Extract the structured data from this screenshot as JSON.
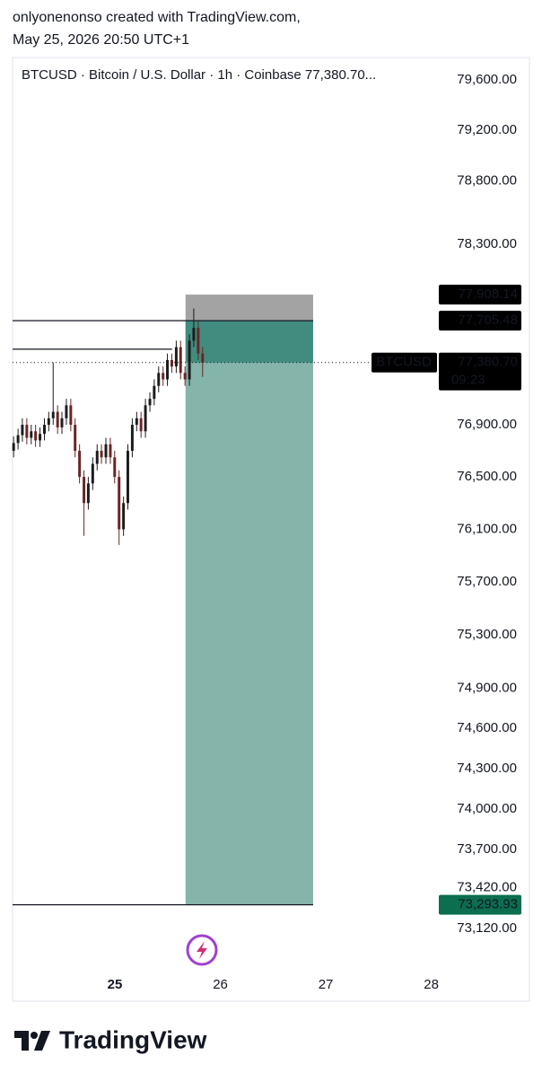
{
  "header": {
    "line1": "onlyonenonso created with TradingView.com,",
    "line2": "May 25, 2026 20:50 UTC+1"
  },
  "footer": {
    "brand": "TradingView"
  },
  "chart_data": {
    "type": "candlestick",
    "title": "BTCUSD · Bitcoin / U.S. Dollar · 1h · Coinbase  77,380.70...",
    "log_scale": true,
    "up_color": "#1c1c1c",
    "down_color": "#6b2424",
    "series": [
      {
        "name": "BTCUSD"
      }
    ],
    "x": [
      24.04,
      24.082,
      24.123,
      24.165,
      24.207,
      24.248,
      24.29,
      24.332,
      24.373,
      24.415,
      24.457,
      24.498,
      24.54,
      24.582,
      24.623,
      24.665,
      24.707,
      24.748,
      24.79,
      24.832,
      24.873,
      24.915,
      24.957,
      24.998,
      25.04,
      25.082,
      25.123,
      25.165,
      25.207,
      25.248,
      25.29,
      25.332,
      25.373,
      25.415,
      25.457,
      25.498,
      25.54,
      25.582,
      25.623,
      25.665,
      25.707,
      25.748,
      25.79,
      25.832
    ],
    "open": [
      76700,
      76760,
      76820,
      76900,
      76800,
      76850,
      76780,
      76830,
      76900,
      76950,
      77000,
      76880,
      76950,
      77050,
      76900,
      76700,
      76500,
      76300,
      76450,
      76600,
      76700,
      76650,
      76750,
      76650,
      76500,
      76100,
      76300,
      76700,
      76900,
      76950,
      76850,
      77050,
      77100,
      77200,
      77300,
      77250,
      77400,
      77350,
      77500,
      77300,
      77250,
      77550,
      77650,
      77450
    ],
    "high": [
      76810,
      76870,
      76950,
      76950,
      76900,
      76900,
      76880,
      76950,
      77000,
      77380,
      77050,
      77000,
      77100,
      77100,
      76950,
      76750,
      76550,
      76500,
      76650,
      76750,
      76750,
      76800,
      76800,
      76700,
      76550,
      76350,
      76750,
      76950,
      77000,
      77000,
      77100,
      77150,
      77250,
      77350,
      77350,
      77450,
      77450,
      77550,
      77550,
      77350,
      77600,
      77800,
      77700,
      77500
    ],
    "low": [
      76650,
      76710,
      76770,
      76750,
      76750,
      76730,
      76730,
      76780,
      76850,
      76900,
      76830,
      76830,
      76900,
      76850,
      76650,
      76450,
      76050,
      76250,
      76400,
      76550,
      76600,
      76600,
      76600,
      76450,
      75980,
      76050,
      76250,
      76650,
      76850,
      76800,
      76800,
      77000,
      77050,
      77150,
      77200,
      77200,
      77300,
      77300,
      77250,
      77200,
      77200,
      77500,
      77400,
      77270
    ],
    "close": [
      76760,
      76820,
      76900,
      76800,
      76850,
      76780,
      76830,
      76900,
      76950,
      77000,
      76880,
      76950,
      77050,
      76900,
      76700,
      76500,
      76300,
      76450,
      76600,
      76700,
      76650,
      76750,
      76650,
      76500,
      76100,
      76300,
      76700,
      76900,
      76950,
      76850,
      77050,
      77100,
      77200,
      77300,
      77250,
      77400,
      77350,
      77500,
      77300,
      77250,
      77550,
      77650,
      77450,
      77380
    ],
    "xlim": [
      24.03,
      28.08
    ],
    "xticks": [
      25,
      26,
      27,
      28
    ],
    "ylim": [
      72786,
      79779
    ],
    "yticks": [
      {
        "value": 79600,
        "label": "79,600.00"
      },
      {
        "value": 79200,
        "label": "79,200.00"
      },
      {
        "value": 78800,
        "label": "78,800.00"
      },
      {
        "value": 78300,
        "label": "78,300.00"
      },
      {
        "value": 76900,
        "label": "76,900.00"
      },
      {
        "value": 76500,
        "label": "76,500.00"
      },
      {
        "value": 76100,
        "label": "76,100.00"
      },
      {
        "value": 75700,
        "label": "75,700.00"
      },
      {
        "value": 75300,
        "label": "75,300.00"
      },
      {
        "value": 74900,
        "label": "74,900.00"
      },
      {
        "value": 74600,
        "label": "74,600.00"
      },
      {
        "value": 74300,
        "label": "74,300.00"
      },
      {
        "value": 74000,
        "label": "74,000.00"
      },
      {
        "value": 73700,
        "label": "73,700.00"
      },
      {
        "value": 73420,
        "label": "73,420.00"
      },
      {
        "value": 73120,
        "label": "73,120.00"
      }
    ],
    "position": {
      "x": [
        25.67,
        26.88
      ],
      "stop": {
        "value": 77908.14,
        "label": "77,908.14",
        "color": "#a3a3a3"
      },
      "entry": {
        "value": 77705.48,
        "label": "77,705.48",
        "color": "#418c7e"
      },
      "target": {
        "value": 73293.93,
        "label": "73,293.93",
        "color": "#84b4aa"
      }
    },
    "last_price": {
      "value": 77380.7,
      "label": "77,380.70",
      "countdown": "09:23"
    },
    "horizontal_line": 77484
  }
}
